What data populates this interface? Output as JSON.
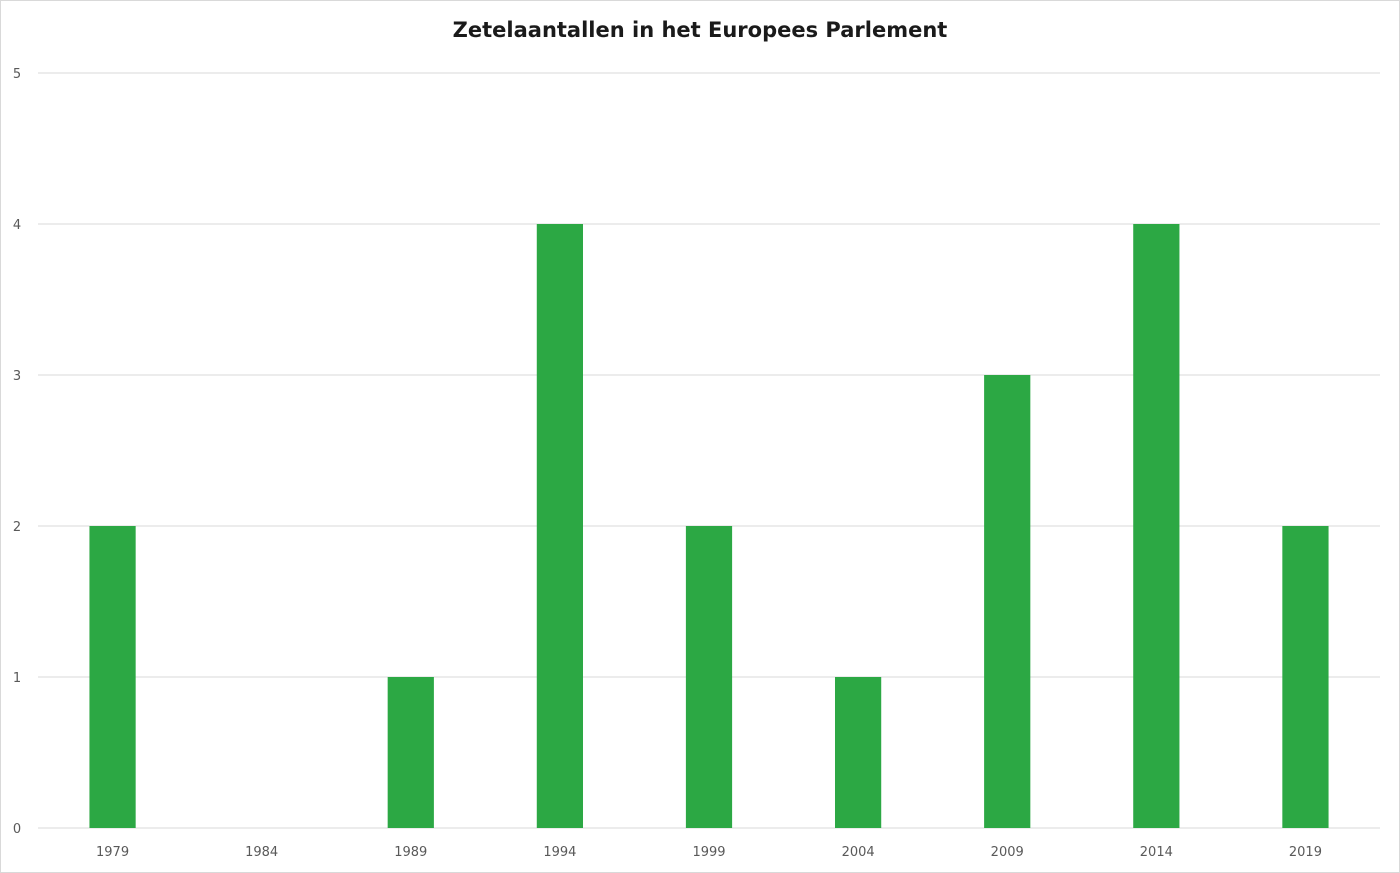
{
  "chart_data": {
    "type": "bar",
    "title": "Zetelaantallen in het Europees Parlement",
    "xlabel": "",
    "ylabel": "",
    "categories": [
      "1979",
      "1984",
      "1989",
      "1994",
      "1999",
      "2004",
      "2009",
      "2014",
      "2019"
    ],
    "values": [
      2,
      0,
      1,
      4,
      2,
      1,
      3,
      4,
      2
    ],
    "ylim": [
      0,
      5
    ],
    "yticks": [
      "0",
      "1",
      "2",
      "3",
      "4",
      "5"
    ],
    "grid": "horizontal",
    "legend": "none",
    "bar_color": "#2ca844",
    "gridline_color": "#d9d9d9"
  }
}
